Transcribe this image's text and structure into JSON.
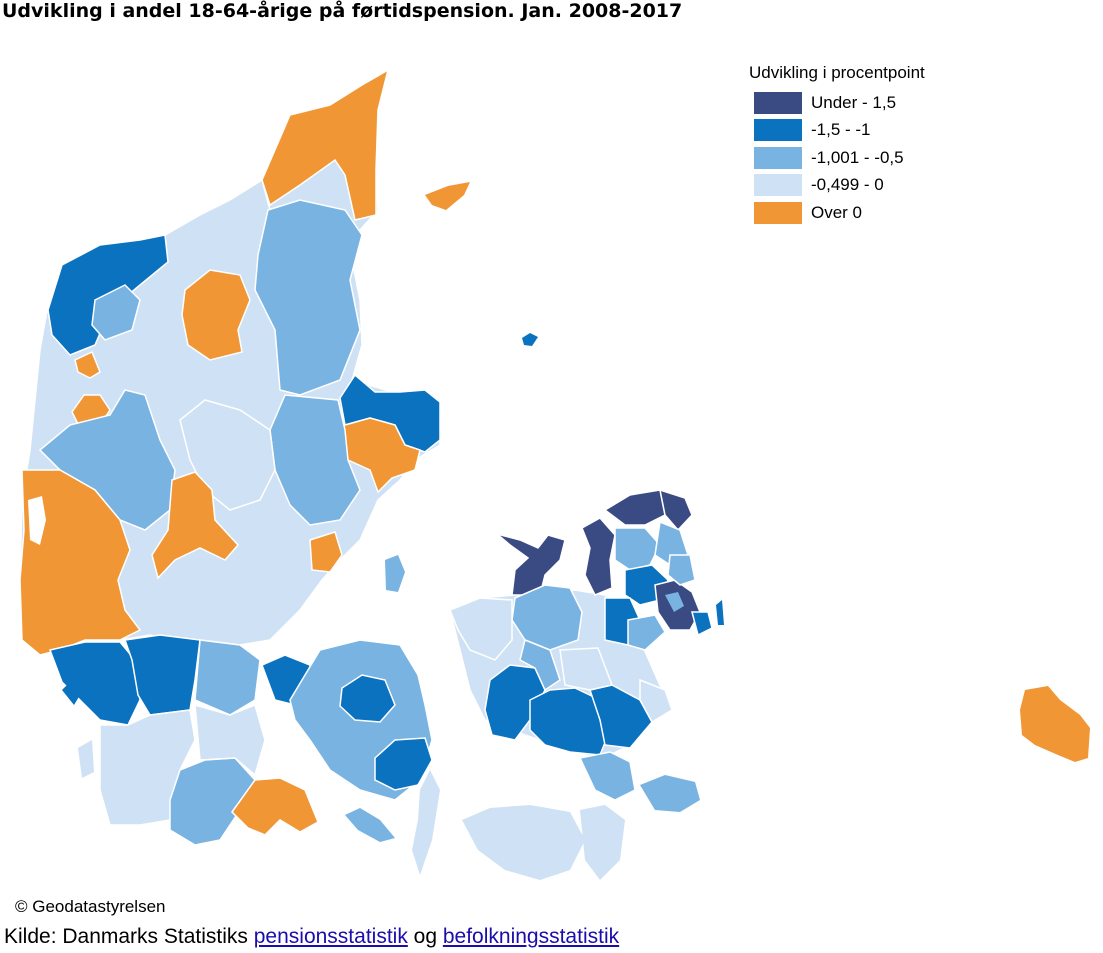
{
  "title": "Udvikling i andel 18-64-årige på førtidspension. Jan. 2008-2017",
  "legend": {
    "title": "Udvikling i procentpoint",
    "items": [
      {
        "label": "Under - 1,5",
        "color": "#3a4a82"
      },
      {
        "label": "-1,5 - -1",
        "color": "#0b72c0"
      },
      {
        "label": "-1,001 - -0,5",
        "color": "#78b3e2"
      },
      {
        "label": "-0,499 - 0",
        "color": "#cfe1f4"
      },
      {
        "label": "Over 0",
        "color": "#f19634"
      }
    ]
  },
  "copyright": "© Geodatastyrelsen",
  "source": {
    "prefix": "Kilde: Danmarks Statistiks ",
    "link1": "pensionsstatistik",
    "middle": " og ",
    "link2": "befolkningsstatistik"
  }
}
